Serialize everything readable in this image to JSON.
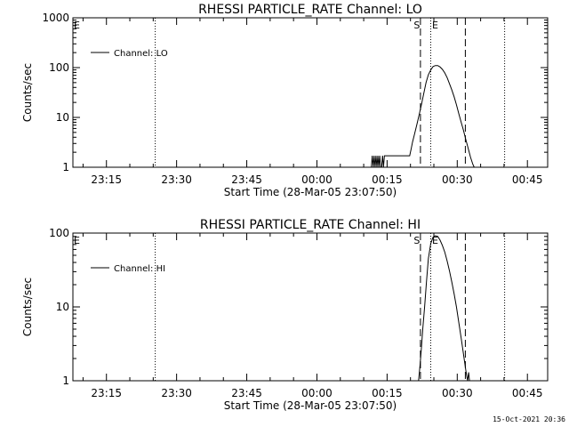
{
  "footer": {
    "timestamp": "15-Oct-2021 20:36"
  },
  "colors": {
    "background": "#ffffff",
    "foreground": "#000000"
  },
  "chart_data": [
    {
      "type": "line",
      "title": "RHESSI PARTICLE_RATE Channel: LO",
      "xlabel": "Start Time (28-Mar-05 23:07:50)",
      "ylabel": "Counts/sec",
      "x_unit": "minutes after 23:07:50 (28-Mar-05)",
      "xlim": [
        0,
        101.5
      ],
      "ylim": [
        1,
        1000
      ],
      "y_scale": "log",
      "x_ticks": [
        {
          "at": 7.17,
          "label": "23:15"
        },
        {
          "at": 22.17,
          "label": "23:30"
        },
        {
          "at": 37.17,
          "label": "23:45"
        },
        {
          "at": 52.17,
          "label": "00:00"
        },
        {
          "at": 67.17,
          "label": "00:15"
        },
        {
          "at": 82.17,
          "label": "00:30"
        },
        {
          "at": 97.17,
          "label": "00:45"
        }
      ],
      "y_ticks": [
        {
          "at": 1,
          "label": "1"
        },
        {
          "at": 10,
          "label": "10"
        },
        {
          "at": 100,
          "label": "100"
        },
        {
          "at": 1000,
          "label": "1000"
        }
      ],
      "legend": {
        "position": "top-left",
        "entries": [
          "Channel: LO"
        ]
      },
      "markers": [
        {
          "x": 74.3,
          "label": "S"
        },
        {
          "x": 76.5,
          "label": "E"
        }
      ],
      "dashed_lines_x": [
        74.3,
        83.9
      ],
      "dotted_lines_x": [
        17.6,
        76.5,
        92.3
      ],
      "side_mark": "E",
      "series": [
        {
          "name": "Channel: LO",
          "x": [
            63.8,
            64.0,
            64.2,
            64.4,
            64.6,
            64.8,
            65.0,
            65.2,
            65.4,
            65.6,
            65.8,
            66.0,
            66.2,
            66.4,
            66.6,
            66.8,
            67.0,
            67.5,
            68.0,
            68.5,
            69.0,
            69.5,
            70.0,
            70.5,
            71.0,
            72.0,
            72.3,
            72.6,
            73.0,
            73.5,
            74.0,
            74.5,
            75.0,
            75.5,
            76.0,
            76.5,
            77.0,
            77.5,
            78.0,
            78.5,
            79.0,
            79.5,
            80.0,
            80.5,
            81.0,
            81.5,
            82.0,
            82.5,
            83.0,
            83.5,
            84.0,
            84.5,
            85.0,
            85.5,
            85.8
          ],
          "y": [
            1,
            1.7,
            1,
            1.7,
            1,
            1.7,
            1,
            1.7,
            1,
            1.7,
            1,
            1,
            1.7,
            1,
            1.7,
            1.7,
            1.7,
            1.7,
            1.7,
            1.7,
            1.7,
            1.7,
            1.7,
            1.7,
            1.7,
            1.7,
            2.3,
            3.2,
            4.5,
            7,
            11,
            18,
            30,
            50,
            72,
            90,
            105,
            110,
            110,
            103,
            92,
            78,
            63,
            48,
            36,
            26,
            18,
            12,
            8,
            5.5,
            3.6,
            2.4,
            1.6,
            1.15,
            1
          ]
        }
      ]
    },
    {
      "type": "line",
      "title": "RHESSI PARTICLE_RATE Channel: HI",
      "xlabel": "Start Time (28-Mar-05 23:07:50)",
      "ylabel": "Counts/sec",
      "x_unit": "minutes after 23:07:50 (28-Mar-05)",
      "xlim": [
        0,
        101.5
      ],
      "ylim": [
        1,
        100
      ],
      "y_scale": "log",
      "x_ticks": [
        {
          "at": 7.17,
          "label": "23:15"
        },
        {
          "at": 22.17,
          "label": "23:30"
        },
        {
          "at": 37.17,
          "label": "23:45"
        },
        {
          "at": 52.17,
          "label": "00:00"
        },
        {
          "at": 67.17,
          "label": "00:15"
        },
        {
          "at": 82.17,
          "label": "00:30"
        },
        {
          "at": 97.17,
          "label": "00:45"
        }
      ],
      "y_ticks": [
        {
          "at": 1,
          "label": "1"
        },
        {
          "at": 10,
          "label": "10"
        },
        {
          "at": 100,
          "label": "100"
        }
      ],
      "legend": {
        "position": "top-left",
        "entries": [
          "Channel: HI"
        ]
      },
      "markers": [
        {
          "x": 74.3,
          "label": "S"
        },
        {
          "x": 76.5,
          "label": "E"
        }
      ],
      "dashed_lines_x": [
        74.3,
        83.9
      ],
      "dotted_lines_x": [
        17.6,
        76.5,
        92.3
      ],
      "side_mark": "E",
      "series": [
        {
          "name": "Channel: HI",
          "x": [
            73.9,
            74.2,
            74.5,
            74.8,
            75.2,
            75.6,
            76.0,
            76.5,
            77.0,
            77.5,
            78.0,
            78.5,
            79.0,
            79.5,
            80.0,
            80.5,
            81.0,
            81.5,
            82.0,
            82.5,
            83.0,
            83.5,
            84.0,
            84.2,
            84.4,
            84.6,
            84.8,
            85.0
          ],
          "y": [
            1,
            1.6,
            2.8,
            5,
            10,
            22,
            45,
            72,
            88,
            92,
            90,
            80,
            68,
            55,
            42,
            31,
            22,
            15,
            10,
            6.2,
            3.8,
            2.3,
            1.4,
            1.15,
            1,
            1.3,
            1,
            1
          ]
        }
      ]
    }
  ]
}
